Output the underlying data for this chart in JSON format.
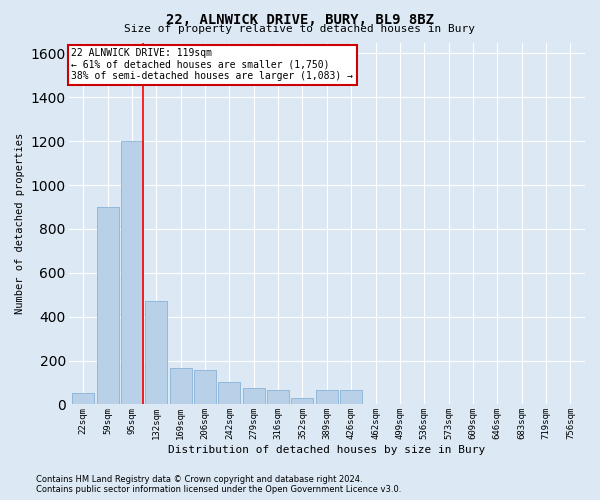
{
  "title": "22, ALNWICK DRIVE, BURY, BL9 8BZ",
  "subtitle": "Size of property relative to detached houses in Bury",
  "xlabel": "Distribution of detached houses by size in Bury",
  "ylabel": "Number of detached properties",
  "bins": [
    "22sqm",
    "59sqm",
    "95sqm",
    "132sqm",
    "169sqm",
    "206sqm",
    "242sqm",
    "279sqm",
    "316sqm",
    "352sqm",
    "389sqm",
    "426sqm",
    "462sqm",
    "499sqm",
    "536sqm",
    "573sqm",
    "609sqm",
    "646sqm",
    "683sqm",
    "719sqm",
    "756sqm"
  ],
  "values": [
    50,
    900,
    1200,
    470,
    165,
    155,
    100,
    75,
    65,
    30,
    65,
    65,
    0,
    0,
    0,
    0,
    0,
    0,
    0,
    0,
    0
  ],
  "bar_color": "#b8d0e8",
  "bar_edge_color": "#7aaad0",
  "background_color": "#dce9f5",
  "plot_bg_color": "#dce9f5",
  "grid_color": "#ffffff",
  "annotation_text_line1": "22 ALNWICK DRIVE: 119sqm",
  "annotation_text_line2": "← 61% of detached houses are smaller (1,750)",
  "annotation_text_line3": "38% of semi-detached houses are larger (1,083) →",
  "annotation_box_color": "#cc0000",
  "ylim": [
    0,
    1650
  ],
  "yticks": [
    0,
    200,
    400,
    600,
    800,
    1000,
    1200,
    1400,
    1600
  ],
  "footnote1": "Contains HM Land Registry data © Crown copyright and database right 2024.",
  "footnote2": "Contains public sector information licensed under the Open Government Licence v3.0.",
  "title_fontsize": 10,
  "subtitle_fontsize": 8,
  "ylabel_fontsize": 7.5,
  "xlabel_fontsize": 8,
  "tick_fontsize": 6.5,
  "annot_fontsize": 7,
  "footnote_fontsize": 6
}
